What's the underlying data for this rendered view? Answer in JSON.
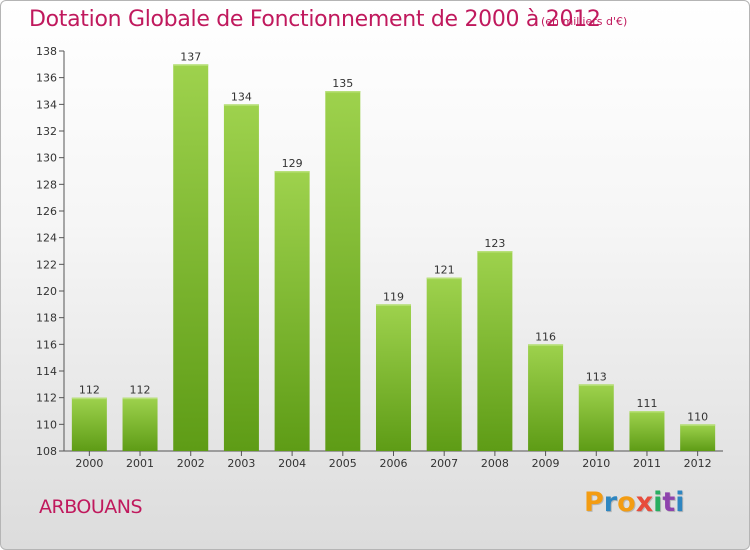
{
  "header": {
    "title": "Dotation Globale de Fonctionnement de 2000 à 2012",
    "subtitle": "(en milliers d'€)"
  },
  "footer": {
    "commune": "ARBOUANS",
    "logo": {
      "letters": [
        "P",
        "r",
        "o",
        "x",
        "i",
        "t",
        "i"
      ],
      "colors": [
        "#f39c12",
        "#2e86c1",
        "#f39c12",
        "#e74c3c",
        "#27ae60",
        "#8e44ad",
        "#2e86c1"
      ]
    }
  },
  "chart_data": {
    "type": "bar",
    "categories": [
      "2000",
      "2001",
      "2002",
      "2003",
      "2004",
      "2005",
      "2006",
      "2007",
      "2008",
      "2009",
      "2010",
      "2011",
      "2012"
    ],
    "values": [
      112,
      112,
      137,
      134,
      129,
      135,
      119,
      121,
      123,
      116,
      113,
      111,
      110
    ],
    "title": "Dotation Globale de Fonctionnement de 2000 à 2012",
    "subtitle": "(en milliers d'€)",
    "xlabel": "",
    "ylabel": "",
    "ylim": [
      108,
      138
    ],
    "yticks": [
      108,
      110,
      112,
      114,
      116,
      118,
      120,
      122,
      124,
      126,
      128,
      130,
      132,
      134,
      136,
      138
    ],
    "grid": false,
    "bar_color": "#7dc242"
  }
}
